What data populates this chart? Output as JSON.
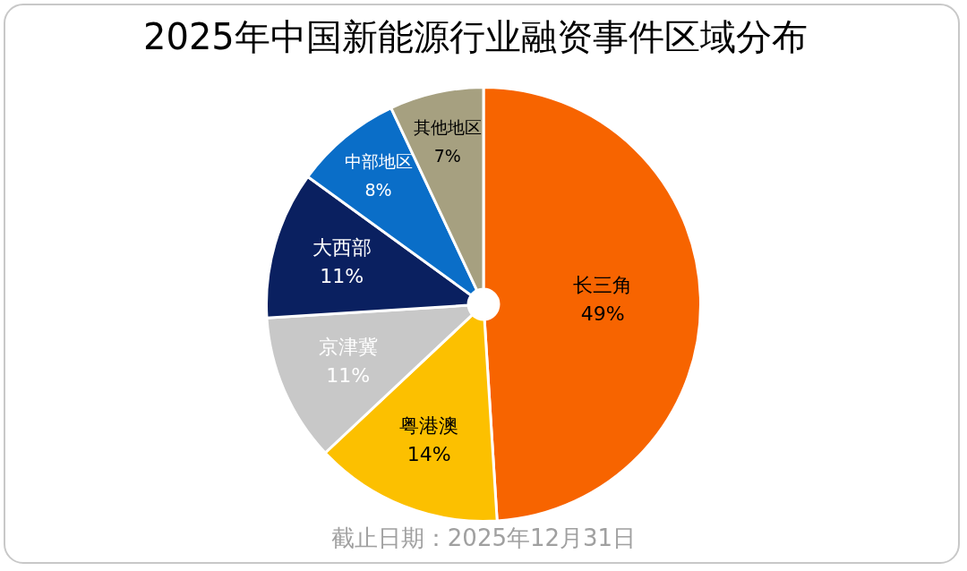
{
  "chart_data": {
    "type": "pie",
    "title": "2025年中国新能源行业融资事件区域分布",
    "categories": [
      "长三角",
      "粤港澳",
      "京津冀",
      "大西部",
      "中部地区",
      "其他地区"
    ],
    "values": [
      49,
      14,
      11,
      11,
      8,
      7
    ],
    "value_labels": [
      "49%",
      "14%",
      "11%",
      "11%",
      "8%",
      "7%"
    ],
    "colors": [
      "#f76400",
      "#fcc000",
      "#c8c8c8",
      "#0a2060",
      "#0a6ec8",
      "#a6a080"
    ],
    "legend": false,
    "annotations": [
      "截止日期：2025年12月31日"
    ]
  }
}
